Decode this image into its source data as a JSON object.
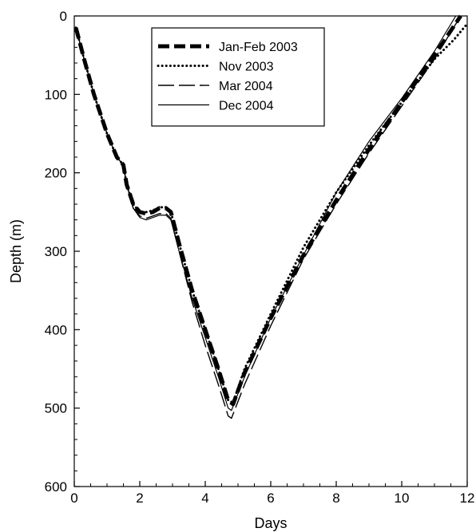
{
  "chart_data": {
    "type": "line",
    "title": "",
    "xlabel": "Days",
    "ylabel": "Depth (m)",
    "xlim": [
      0,
      12
    ],
    "ylim": [
      0,
      600
    ],
    "y_inverted": true,
    "grid": false,
    "legend_position": "top-center",
    "x_ticks": [
      0,
      2,
      4,
      6,
      8,
      10,
      12
    ],
    "y_ticks": [
      0,
      100,
      200,
      300,
      400,
      500,
      600
    ],
    "x_tick_labels": [
      "0",
      "2",
      "4",
      "6",
      "8",
      "10",
      "12"
    ],
    "y_tick_labels": [
      "0",
      "100",
      "200",
      "300",
      "400",
      "500",
      "600"
    ],
    "series": [
      {
        "name": "Jan-Feb 2003",
        "style": "thick-dash",
        "color": "#000000",
        "x": [
          0.05,
          0.3,
          0.6,
          1.0,
          1.3,
          1.5,
          1.6,
          1.8,
          2.0,
          2.2,
          2.4,
          2.6,
          2.8,
          2.95,
          3.2,
          3.6,
          4.0,
          4.4,
          4.7,
          4.85,
          5.2,
          6.0,
          7.0,
          8.0,
          9.0,
          10.0,
          11.0,
          11.8
        ],
        "y": [
          15,
          55,
          100,
          150,
          180,
          190,
          215,
          240,
          250,
          252,
          250,
          245,
          245,
          250,
          290,
          350,
          400,
          450,
          490,
          495,
          455,
          385,
          305,
          235,
          170,
          110,
          50,
          0
        ]
      },
      {
        "name": "Nov 2003",
        "style": "dotted",
        "color": "#000000",
        "x": [
          0.05,
          0.3,
          0.6,
          1.0,
          1.3,
          1.5,
          1.6,
          1.8,
          2.0,
          2.2,
          2.4,
          2.6,
          2.8,
          2.95,
          3.2,
          3.6,
          4.0,
          4.4,
          4.7,
          4.85,
          5.2,
          6.0,
          7.0,
          8.0,
          9.0,
          10.0,
          11.0,
          11.6,
          12.0
        ],
        "y": [
          15,
          55,
          100,
          150,
          180,
          190,
          215,
          240,
          250,
          250,
          248,
          244,
          244,
          250,
          290,
          350,
          400,
          450,
          490,
          493,
          450,
          380,
          295,
          225,
          165,
          110,
          55,
          30,
          10
        ]
      },
      {
        "name": "Mar 2004",
        "style": "long-dash",
        "color": "#000000",
        "x": [
          0.05,
          0.3,
          0.6,
          1.0,
          1.3,
          1.5,
          1.6,
          1.8,
          2.0,
          2.2,
          2.4,
          2.6,
          2.8,
          2.95,
          3.2,
          3.6,
          4.0,
          4.4,
          4.7,
          4.8,
          5.2,
          6.0,
          7.0,
          8.0,
          9.0,
          10.0,
          11.0,
          11.8
        ],
        "y": [
          15,
          55,
          100,
          150,
          180,
          190,
          215,
          245,
          255,
          258,
          255,
          252,
          252,
          258,
          300,
          365,
          420,
          470,
          510,
          513,
          470,
          395,
          310,
          240,
          175,
          115,
          55,
          0
        ]
      },
      {
        "name": "Dec 2004",
        "style": "solid",
        "color": "#000000",
        "x": [
          0.05,
          0.3,
          0.6,
          1.0,
          1.3,
          1.5,
          1.6,
          1.8,
          2.0,
          2.2,
          2.4,
          2.6,
          2.8,
          2.95,
          3.2,
          3.6,
          4.0,
          4.4,
          4.7,
          4.8,
          5.2,
          6.0,
          7.0,
          8.0,
          9.0,
          10.0,
          11.0,
          11.65
        ],
        "y": [
          15,
          55,
          100,
          150,
          180,
          190,
          215,
          245,
          257,
          260,
          257,
          254,
          254,
          260,
          300,
          360,
          410,
          460,
          500,
          503,
          460,
          385,
          305,
          225,
          160,
          105,
          45,
          0
        ]
      }
    ]
  }
}
